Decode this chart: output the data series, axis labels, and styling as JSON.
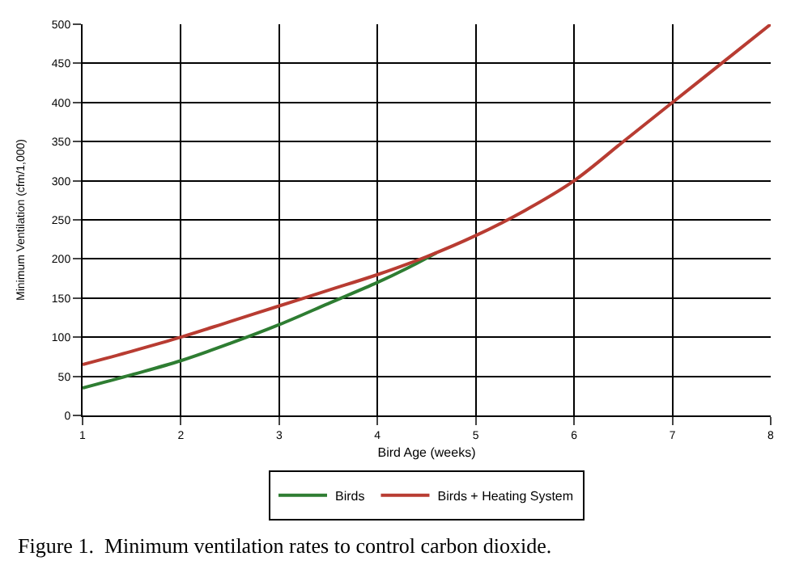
{
  "chart_data": {
    "type": "line",
    "xlabel": "Bird Age (weeks)",
    "ylabel": "Minimum Ventilation (cfm/1,000)",
    "xlim": [
      1,
      8
    ],
    "xticks": [
      1,
      2,
      3,
      4,
      5,
      6,
      7,
      8
    ],
    "ylim": [
      0,
      500
    ],
    "yticks": [
      0,
      50,
      100,
      150,
      200,
      250,
      300,
      350,
      400,
      450,
      500
    ],
    "grid": true,
    "legend": "bottom",
    "marker": "none",
    "line_style": "solid",
    "series": [
      {
        "name": "Birds",
        "color": "#2e7d32",
        "x": [
          1,
          1.5,
          2,
          2.5,
          3,
          3.5,
          4,
          4.3,
          4.6
        ],
        "values": [
          35,
          52,
          70,
          92,
          116,
          143,
          170,
          188,
          208
        ]
      },
      {
        "name": "Birds + Heating System",
        "color": "#b83c32",
        "x": [
          1,
          1.5,
          2,
          2.5,
          3,
          3.5,
          4,
          4.5,
          5,
          5.5,
          6,
          6.5,
          7,
          7.5,
          8
        ],
        "values": [
          65,
          82,
          100,
          120,
          140,
          160,
          180,
          203,
          230,
          262,
          300,
          350,
          400,
          450,
          500
        ]
      }
    ],
    "annotations": [
      "Figure 1.  Minimum ventilation rates to control carbon dioxide."
    ]
  }
}
